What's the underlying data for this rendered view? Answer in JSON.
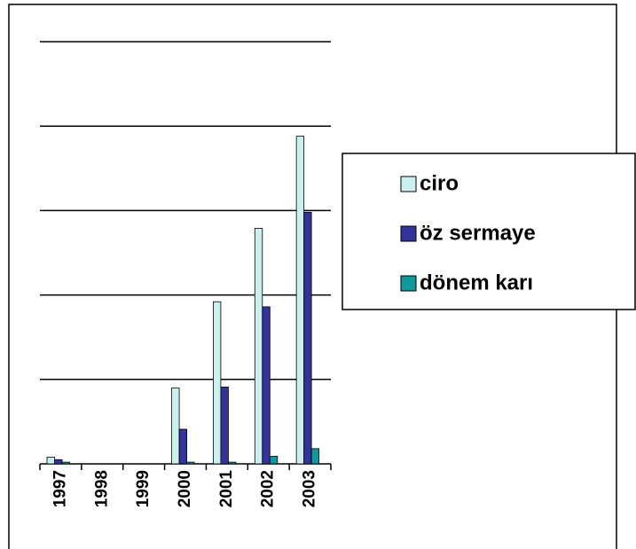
{
  "chart_data": {
    "type": "bar",
    "categories": [
      "1997",
      "1998",
      "1999",
      "2000",
      "2001",
      "2002",
      "2003"
    ],
    "series": [
      {
        "name": "ciro",
        "color": "#ccf0f0",
        "values": [
          0.08,
          0,
          0,
          0.9,
          1.92,
          2.79,
          3.88
        ]
      },
      {
        "name": "öz sermaye",
        "color": "#333399",
        "values": [
          0.05,
          0,
          0,
          0.41,
          0.91,
          1.86,
          2.98
        ]
      },
      {
        "name": "dönem karı",
        "color": "#119999",
        "values": [
          0.02,
          0,
          0,
          0.02,
          0.02,
          0.09,
          0.18
        ]
      }
    ],
    "ylim": [
      0,
      5
    ],
    "yticks": [
      0,
      1,
      2,
      3,
      4,
      5
    ],
    "grid": true,
    "legend": "right"
  }
}
